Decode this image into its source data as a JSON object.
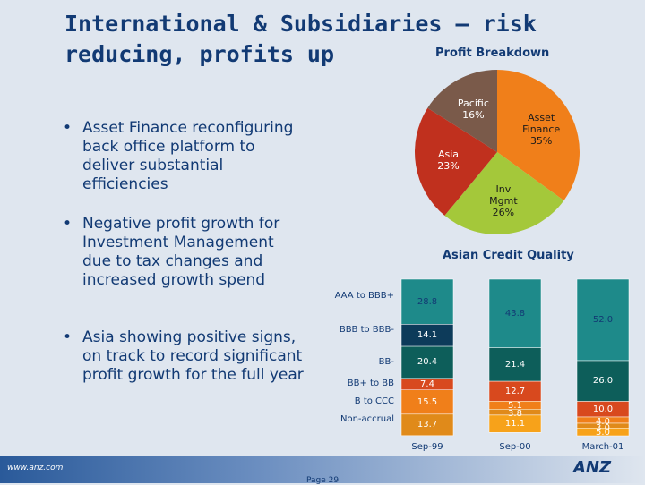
{
  "slide": {
    "title": "International & Subsidiaries – risk reducing, profits up",
    "bullets": [
      "Asset Finance reconfiguring back office platform to deliver substantial efficiencies",
      "Negative profit growth for Investment Management due to tax changes and increased growth spend",
      "Asia showing positive signs, on track to record significant profit growth for the full year"
    ],
    "footer_url": "www.anz.com",
    "page_label": "Page 29",
    "logo_text": "ANZ",
    "bullet_glyph": "•"
  },
  "chart_data": [
    {
      "type": "pie",
      "title": "Profit Breakdown",
      "slices": [
        {
          "label": "Asset Finance",
          "percent_label": "35%",
          "value": 35,
          "color": "#f07f1a",
          "text_color": "#1a1a1a"
        },
        {
          "label": "Inv Mgmt",
          "percent_label": "26%",
          "value": 26,
          "color": "#a4c83a",
          "text_color": "#1a1a1a"
        },
        {
          "label": "Asia",
          "percent_label": "23%",
          "value": 23,
          "color": "#c0301e",
          "text_color": "#ffffff"
        },
        {
          "label": "Pacific",
          "percent_label": "16%",
          "value": 16,
          "color": "#7a5a4a",
          "text_color": "#ffffff"
        }
      ]
    },
    {
      "type": "bar",
      "stacked": true,
      "title": "Asian Credit Quality",
      "categories": [
        "Sep-99",
        "Sep-00",
        "March-01"
      ],
      "series": [
        {
          "name": "AAA to BBB+",
          "values": [
            28.8,
            43.8,
            52.0
          ],
          "color": "#1e8a8a",
          "text_color": "#123a74"
        },
        {
          "name": "BBB to BBB-",
          "values": [
            14.1,
            0,
            0
          ],
          "color": "#0d3b5a",
          "text_color": "#ffffff"
        },
        {
          "name": "BB-",
          "values": [
            20.4,
            21.4,
            26.0
          ],
          "color": "#0d5e5a",
          "text_color": "#ffffff"
        },
        {
          "name": "BB+ to BB",
          "values": [
            7.4,
            12.7,
            10.0
          ],
          "color": "#d8491e",
          "text_color": "#ffffff"
        },
        {
          "name": "B to CCC",
          "values": [
            15.5,
            5.1,
            4.0
          ],
          "color": "#f07f1a",
          "text_color": "#ffffff"
        },
        {
          "name": "Non-accrual",
          "values": [
            13.7,
            3.8,
            3.0
          ],
          "color": "#e08a1a",
          "text_color": "#ffffff"
        },
        {
          "name": "",
          "values": [
            0,
            11.1,
            5.0
          ],
          "color": "#f7a21a",
          "text_color": "#ffffff"
        }
      ],
      "data_labels": [
        [
          "28.8",
          "14.1",
          "20.4",
          "7.4",
          "15.5",
          "13.7",
          ""
        ],
        [
          "43.8",
          "",
          "21.4",
          "12.7",
          "5.1",
          "3.8",
          "11.1"
        ],
        [
          "52.0",
          "",
          "26.0",
          "10.0",
          "4.0",
          "3.0",
          "5.0"
        ]
      ],
      "ylim": [
        0,
        100
      ]
    }
  ]
}
